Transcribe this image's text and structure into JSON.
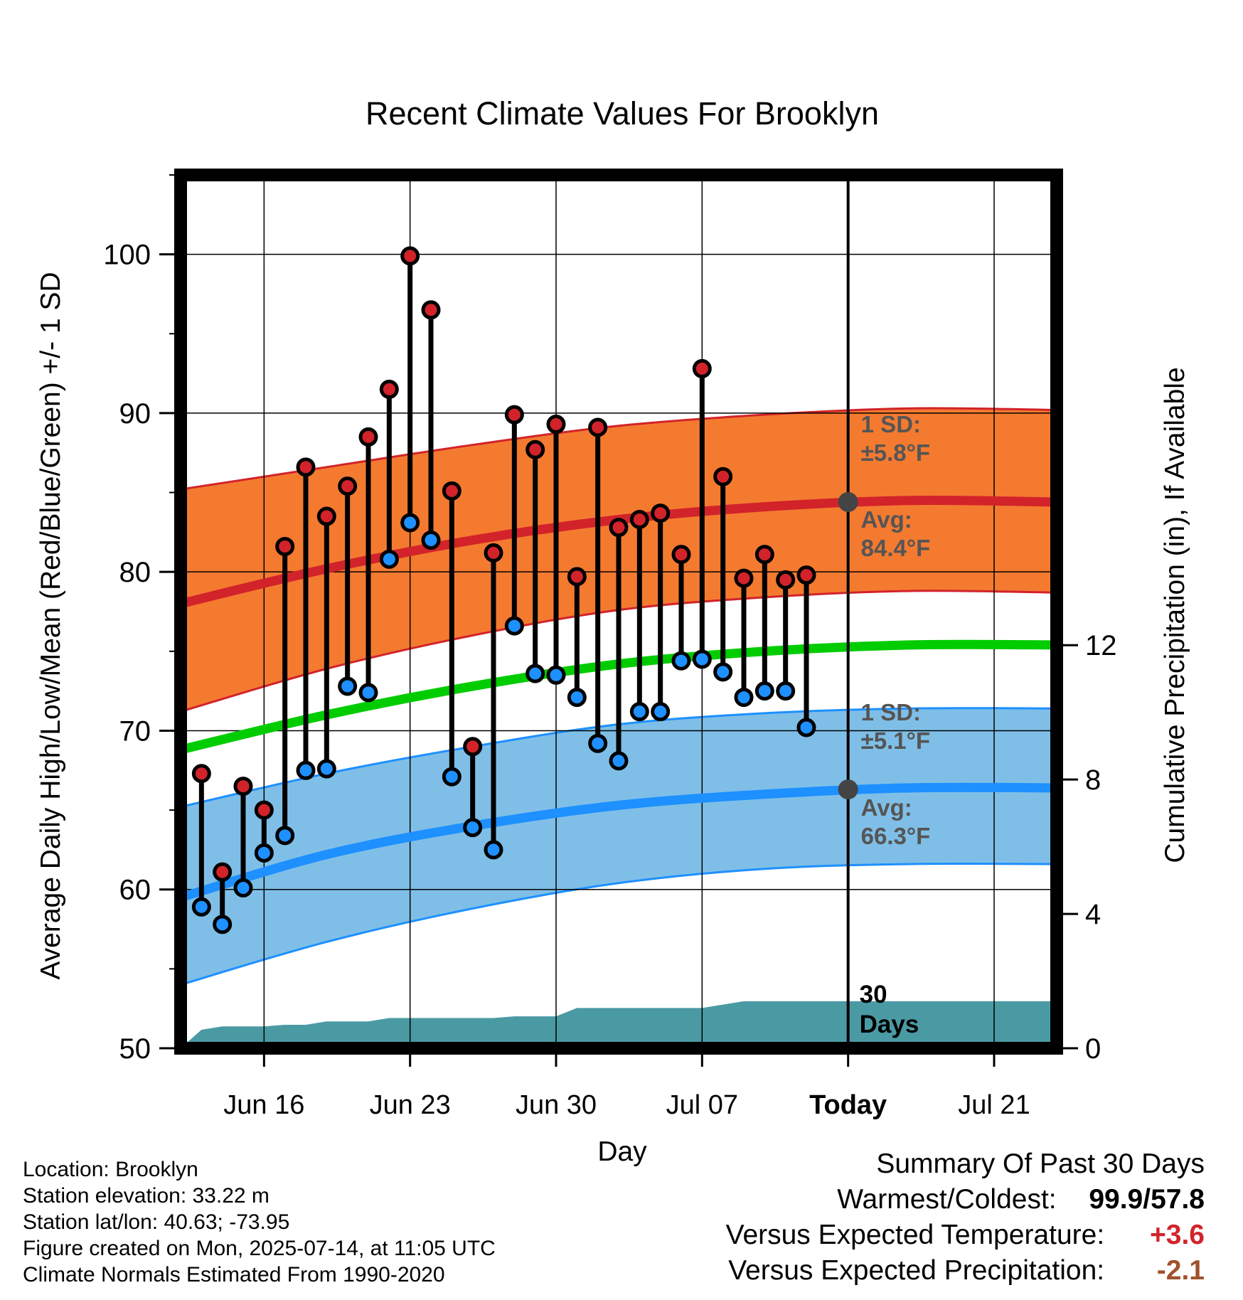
{
  "chart_data": {
    "type": "line",
    "title": "Recent Climate Values For Brooklyn",
    "xlabel": "Day",
    "ylabel": "Average Daily High/Low/Mean (Red/Blue/Green) +/- 1 SD",
    "y2label": "Cumulative Precipitation (in), If Available",
    "ylim": [
      50,
      105
    ],
    "y_ticks": [
      "50",
      "60",
      "70",
      "80",
      "90",
      "100"
    ],
    "y2_ticks": [
      "0",
      "4",
      "8",
      "12"
    ],
    "y2_tick_values": [
      0,
      4,
      8,
      12
    ],
    "y2lim": [
      0,
      26
    ],
    "x_range_days": [
      "2025-06-12",
      "2025-07-24"
    ],
    "x_ticks": [
      {
        "date": "2025-06-16",
        "label": "Jun 16"
      },
      {
        "date": "2025-06-23",
        "label": "Jun 23"
      },
      {
        "date": "2025-06-30",
        "label": "Jun 30"
      },
      {
        "date": "2025-07-07",
        "label": "Jul 07"
      },
      {
        "date": "2025-07-14",
        "label": "Today"
      },
      {
        "date": "2025-07-21",
        "label": "Jul 21"
      }
    ],
    "grid": true,
    "today_date": "2025-07-14",
    "highs": {
      "dates": [
        "2025-06-13",
        "2025-06-14",
        "2025-06-15",
        "2025-06-16",
        "2025-06-17",
        "2025-06-18",
        "2025-06-19",
        "2025-06-20",
        "2025-06-21",
        "2025-06-22",
        "2025-06-23",
        "2025-06-24",
        "2025-06-25",
        "2025-06-26",
        "2025-06-27",
        "2025-06-28",
        "2025-06-29",
        "2025-06-30",
        "2025-07-01",
        "2025-07-02",
        "2025-07-03",
        "2025-07-04",
        "2025-07-05",
        "2025-07-06",
        "2025-07-07",
        "2025-07-08",
        "2025-07-09",
        "2025-07-10",
        "2025-07-11",
        "2025-07-12",
        "2025-07-13"
      ],
      "values": [
        67.3,
        61.1,
        66.5,
        65.0,
        81.6,
        86.6,
        83.5,
        85.4,
        88.5,
        91.5,
        99.9,
        96.5,
        85.1,
        69.0,
        81.2,
        89.9,
        87.7,
        89.3,
        79.7,
        89.1,
        82.8,
        83.3,
        83.7,
        81.1,
        92.8,
        86.0,
        79.6,
        81.1,
        79.5,
        79.8,
        null
      ]
    },
    "lows": {
      "dates": [
        "2025-06-13",
        "2025-06-14",
        "2025-06-15",
        "2025-06-16",
        "2025-06-17",
        "2025-06-18",
        "2025-06-19",
        "2025-06-20",
        "2025-06-21",
        "2025-06-22",
        "2025-06-23",
        "2025-06-24",
        "2025-06-25",
        "2025-06-26",
        "2025-06-27",
        "2025-06-28",
        "2025-06-29",
        "2025-06-30",
        "2025-07-01",
        "2025-07-02",
        "2025-07-03",
        "2025-07-04",
        "2025-07-05",
        "2025-07-06",
        "2025-07-07",
        "2025-07-08",
        "2025-07-09",
        "2025-07-10",
        "2025-07-11",
        "2025-07-12",
        "2025-07-13"
      ],
      "values": [
        58.9,
        57.8,
        60.1,
        62.3,
        63.4,
        67.5,
        67.6,
        72.8,
        72.4,
        80.8,
        83.1,
        82.0,
        67.1,
        63.9,
        62.5,
        76.6,
        73.6,
        73.5,
        72.1,
        69.2,
        68.1,
        71.2,
        71.2,
        74.4,
        74.5,
        73.7,
        72.1,
        72.5,
        72.5,
        70.2,
        null
      ]
    },
    "normal_high": {
      "dates": [
        "2025-06-12",
        "2025-06-19",
        "2025-06-26",
        "2025-07-03",
        "2025-07-10",
        "2025-07-17",
        "2025-07-24"
      ],
      "avg": [
        78.0,
        80.2,
        82.0,
        83.3,
        84.1,
        84.5,
        84.4
      ],
      "upper": [
        85.2,
        86.6,
        88.0,
        89.2,
        89.9,
        90.3,
        90.2
      ],
      "lower": [
        71.2,
        73.9,
        76.0,
        77.6,
        78.4,
        78.8,
        78.7
      ]
    },
    "normal_mean": {
      "dates": [
        "2025-06-12",
        "2025-06-19",
        "2025-06-26",
        "2025-07-03",
        "2025-07-10",
        "2025-07-17",
        "2025-07-24"
      ],
      "avg": [
        68.8,
        71.0,
        72.8,
        74.2,
        75.0,
        75.4,
        75.4
      ]
    },
    "normal_low": {
      "dates": [
        "2025-06-12",
        "2025-06-19",
        "2025-06-26",
        "2025-07-03",
        "2025-07-10",
        "2025-07-17",
        "2025-07-24"
      ],
      "avg": [
        59.5,
        62.2,
        64.0,
        65.3,
        66.0,
        66.4,
        66.4
      ],
      "upper": [
        65.2,
        67.3,
        69.0,
        70.4,
        71.1,
        71.4,
        71.4
      ],
      "lower": [
        54.0,
        56.7,
        58.8,
        60.4,
        61.3,
        61.6,
        61.6
      ]
    },
    "precip_cumulative": {
      "dates": [
        "2025-06-12",
        "2025-06-13",
        "2025-06-14",
        "2025-06-15",
        "2025-06-16",
        "2025-06-17",
        "2025-06-18",
        "2025-06-19",
        "2025-06-20",
        "2025-06-21",
        "2025-06-22",
        "2025-06-23",
        "2025-06-24",
        "2025-06-25",
        "2025-06-26",
        "2025-06-27",
        "2025-06-28",
        "2025-06-29",
        "2025-06-30",
        "2025-07-01",
        "2025-07-02",
        "2025-07-03",
        "2025-07-04",
        "2025-07-05",
        "2025-07-06",
        "2025-07-07",
        "2025-07-08",
        "2025-07-09",
        "2025-07-10",
        "2025-07-11",
        "2025-07-12",
        "2025-07-13",
        "2025-07-14",
        "2025-07-24"
      ],
      "values": [
        0.0,
        0.55,
        0.65,
        0.65,
        0.65,
        0.7,
        0.7,
        0.8,
        0.8,
        0.8,
        0.9,
        0.9,
        0.9,
        0.9,
        0.9,
        0.9,
        0.95,
        0.95,
        0.95,
        1.2,
        1.2,
        1.2,
        1.2,
        1.2,
        1.2,
        1.2,
        1.3,
        1.4,
        1.4,
        1.4,
        1.4,
        1.4,
        1.4,
        1.4
      ]
    },
    "annotations": {
      "high_sd": "1 SD:",
      "high_sd_val": "±5.8°F",
      "high_avg": "Avg:",
      "high_avg_val": "84.4°F",
      "low_sd": "1 SD:",
      "low_sd_val": "±5.1°F",
      "low_avg": "Avg:",
      "low_avg_val": "66.3°F",
      "precip_days": "30",
      "precip_days_label": "Days"
    },
    "today_markers": {
      "high_avg": 84.4,
      "low_avg": 66.3
    }
  },
  "colors": {
    "high_band": "#f47a30",
    "high_line": "#d2232a",
    "mean_line": "#00cc00",
    "low_band": "#7fbfe7",
    "low_line": "#1e90ff",
    "precip": "#4a9aa3",
    "annotation": "#555555",
    "high_marker": "#d2232a",
    "low_marker": "#1e90ff",
    "temp_anomaly": "#d2232a",
    "precip_anomaly": "#a0522d"
  },
  "metadata": {
    "location": "Location: Brooklyn",
    "elevation": "Station elevation: 33.22 m",
    "latlon": "Station lat/lon: 40.63; -73.95",
    "created": "Figure created on Mon, 2025-07-14, at 11:05 UTC",
    "normals": "Climate Normals Estimated From 1990-2020"
  },
  "summary": {
    "title": "Summary Of Past 30 Days",
    "warm_cold_label": "Warmest/Coldest:",
    "warmest": "99.9",
    "separator": "/",
    "coldest": "57.8",
    "temp_label": "Versus Expected Temperature:",
    "temp_value": "+3.6",
    "precip_label": "Versus Expected Precipitation:",
    "precip_value": "-2.1"
  }
}
